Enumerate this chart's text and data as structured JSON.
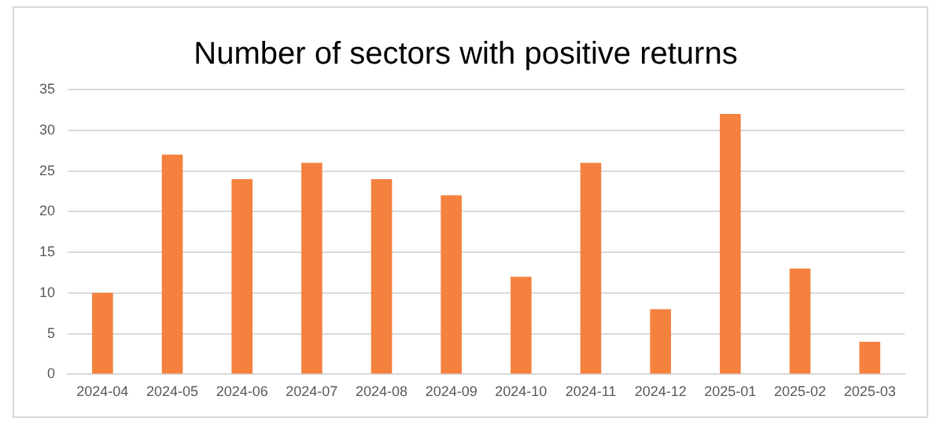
{
  "chart_data": {
    "type": "bar",
    "title": "Number of sectors with positive returns",
    "categories": [
      "2024-04",
      "2024-05",
      "2024-06",
      "2024-07",
      "2024-08",
      "2024-09",
      "2024-10",
      "2024-11",
      "2024-12",
      "2025-01",
      "2025-02",
      "2025-03"
    ],
    "values": [
      10,
      27,
      24,
      26,
      24,
      22,
      12,
      26,
      8,
      32,
      13,
      4
    ],
    "color": "#f5813f",
    "ylim": [
      0,
      35
    ],
    "yticks": [
      0,
      5,
      10,
      15,
      20,
      25,
      30,
      35
    ],
    "grid": "y",
    "legend": false
  }
}
